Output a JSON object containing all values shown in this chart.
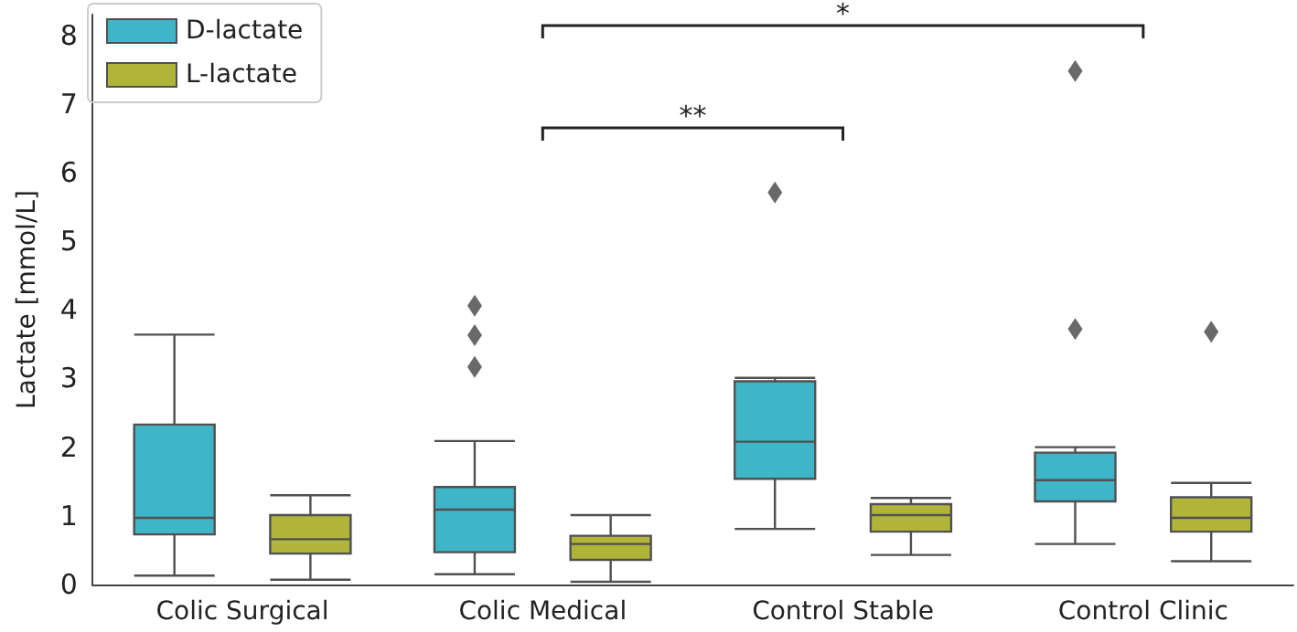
{
  "chart_data": {
    "type": "box",
    "ylabel": "Lactate [mmol/L]",
    "categories": [
      "Colic Surgical",
      "Colic Medical",
      "Control Stable",
      "Control Clinic"
    ],
    "series": [
      {
        "name": "D-lactate",
        "color": "#3fb5c8",
        "boxes": [
          {
            "low": 0.13,
            "q1": 0.73,
            "median": 0.97,
            "q3": 2.33,
            "high": 3.64
          },
          {
            "low": 0.15,
            "q1": 0.47,
            "median": 1.09,
            "q3": 1.42,
            "high": 2.09,
            "outliers": [
              4.06,
              3.63,
              3.17
            ]
          },
          {
            "low": 0.81,
            "q1": 1.54,
            "median": 2.08,
            "q3": 2.96,
            "high": 3.01,
            "outliers": [
              5.71
            ]
          },
          {
            "low": 0.59,
            "q1": 1.21,
            "median": 1.52,
            "q3": 1.92,
            "high": 2.0,
            "outliers": [
              7.48,
              3.72
            ]
          }
        ]
      },
      {
        "name": "L-lactate",
        "color": "#b0b53a",
        "boxes": [
          {
            "low": 0.07,
            "q1": 0.45,
            "median": 0.66,
            "q3": 1.01,
            "high": 1.3
          },
          {
            "low": 0.04,
            "q1": 0.36,
            "median": 0.59,
            "q3": 0.71,
            "high": 1.01
          },
          {
            "low": 0.43,
            "q1": 0.77,
            "median": 1.01,
            "q3": 1.17,
            "high": 1.26
          },
          {
            "low": 0.34,
            "q1": 0.77,
            "median": 0.97,
            "q3": 1.27,
            "high": 1.48,
            "outliers": [
              3.68
            ]
          }
        ]
      }
    ],
    "annotations": [
      "**",
      "*"
    ],
    "ylim": [
      0,
      8.3
    ],
    "yticks": [
      0,
      1,
      2,
      3,
      4,
      5,
      6,
      7,
      8
    ],
    "grid": false,
    "legend": "top left"
  }
}
